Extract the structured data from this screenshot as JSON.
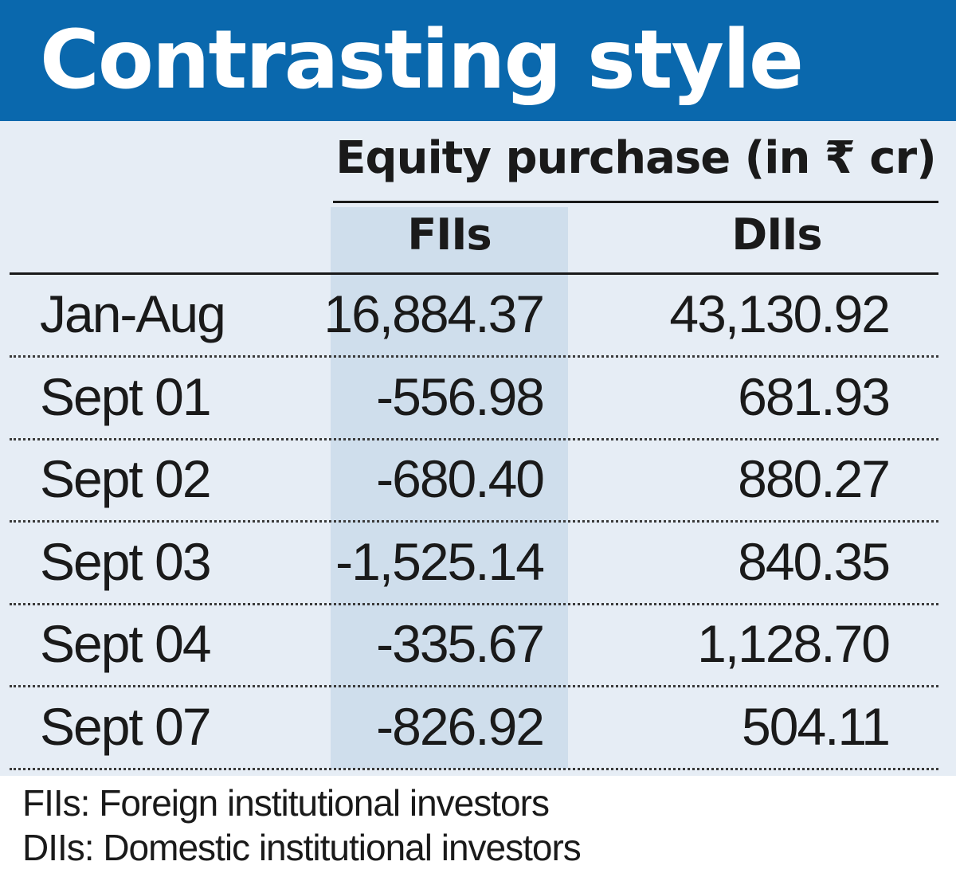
{
  "title": "Contrasting style",
  "table": {
    "group_header": "Equity purchase (in ₹ cr)",
    "columns": [
      "FIIs",
      "DIIs"
    ]
  },
  "chart_data": {
    "type": "table",
    "title": "Contrasting style",
    "subtitle": "Equity purchase (in ₹ cr)",
    "columns": [
      "FIIs",
      "DIIs"
    ],
    "rows": [
      {
        "label": "Jan-Aug",
        "fii": "16,884.37",
        "dii": "43,130.92"
      },
      {
        "label": "Sept 01",
        "fii": "-556.98",
        "dii": "681.93"
      },
      {
        "label": "Sept 02",
        "fii": "-680.40",
        "dii": "880.27"
      },
      {
        "label": "Sept 03",
        "fii": "-1,525.14",
        "dii": "840.35"
      },
      {
        "label": "Sept 04",
        "fii": "-335.67",
        "dii": "1,128.70"
      },
      {
        "label": "Sept 07",
        "fii": "-826.92",
        "dii": "504.11"
      }
    ]
  },
  "footnotes": [
    "FIIs: Foreign institutional investors",
    "DIIs: Domestic institutional investors"
  ],
  "colors": {
    "title_bar": "#0a68ad",
    "panel": "#e6edf5",
    "fii_band": "#cfdeec"
  }
}
